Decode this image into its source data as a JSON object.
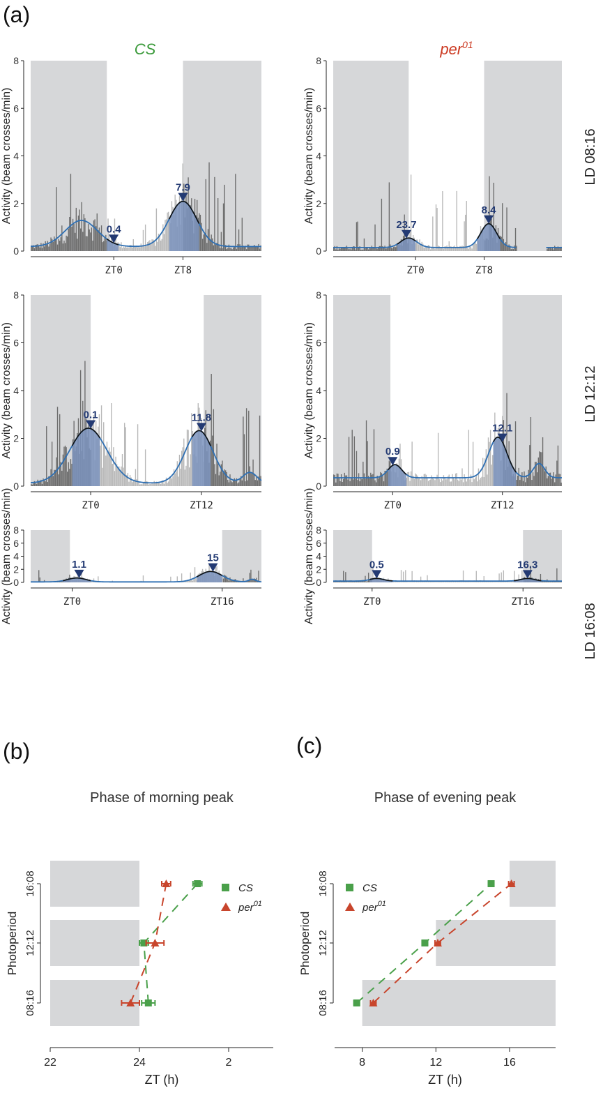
{
  "panel_labels": {
    "a": "(a)",
    "b": "(b)",
    "c": "(c)"
  },
  "columns": [
    {
      "label": "CS",
      "italic": true,
      "color": "#3a9a3a"
    },
    {
      "label": "per",
      "sup": "01",
      "italic": true,
      "color": "#cc3a22"
    }
  ],
  "rows": [
    {
      "label": "LD 08:16"
    },
    {
      "label": "LD 12:12"
    },
    {
      "label": "LD 16:08"
    }
  ],
  "activity_ylabel": "Activity (beam crosses/min)",
  "activity_yticks": [
    "0",
    "2",
    "4",
    "6",
    "8"
  ],
  "activity_panels": [
    {
      "row": 0,
      "col": 0,
      "zt_ticks": [
        "ZT0",
        "ZT8"
      ],
      "peak_labels": [
        "0.4",
        "7.9"
      ]
    },
    {
      "row": 0,
      "col": 1,
      "zt_ticks": [
        "ZT0",
        "ZT8"
      ],
      "peak_labels": [
        "23.7",
        "8.4"
      ]
    },
    {
      "row": 1,
      "col": 0,
      "zt_ticks": [
        "ZT0",
        "ZT12"
      ],
      "peak_labels": [
        "0.1",
        "11.8"
      ]
    },
    {
      "row": 1,
      "col": 1,
      "zt_ticks": [
        "ZT0",
        "ZT12"
      ],
      "peak_labels": [
        "0.9",
        "12.1"
      ]
    },
    {
      "row": 2,
      "col": 0,
      "zt_ticks": [
        "ZT0",
        "ZT16"
      ],
      "peak_labels": [
        "1.1",
        "15"
      ]
    },
    {
      "row": 2,
      "col": 1,
      "zt_ticks": [
        "ZT0",
        "ZT16"
      ],
      "peak_labels": [
        "0.5",
        "16.3"
      ]
    }
  ],
  "colors": {
    "dark_shade": "#d6d7d9",
    "dark_bar": "#6d6d6d",
    "light_bar": "#b8b8b8",
    "peak_fill": "#7b93bd",
    "smooth_line": "#2e6fb3",
    "marker": "#233a73",
    "cs": "#4aa04a",
    "per": "#c8452c"
  },
  "chart_data": [
    {
      "type": "bar",
      "title": "CS, LD 08:16",
      "ylabel": "Activity (beam crosses/min)",
      "ylim": [
        0,
        8
      ],
      "x_ticks": [
        "ZT0",
        "ZT8"
      ],
      "peaks": [
        {
          "label": "0.4",
          "height": 1.2
        },
        {
          "label": "7.9",
          "height": 2.2
        }
      ]
    },
    {
      "type": "bar",
      "title": "per01, LD 08:16",
      "ylabel": "Activity (beam crosses/min)",
      "ylim": [
        0,
        8
      ],
      "x_ticks": [
        "ZT0",
        "ZT8"
      ],
      "peaks": [
        {
          "label": "23.7",
          "height": 0.6
        },
        {
          "label": "8.4",
          "height": 1.2
        }
      ]
    },
    {
      "type": "bar",
      "title": "CS, LD 12:12",
      "ylabel": "Activity (beam crosses/min)",
      "ylim": [
        0,
        8
      ],
      "x_ticks": [
        "ZT0",
        "ZT12"
      ],
      "peaks": [
        {
          "label": "0.1",
          "height": 2.5
        },
        {
          "label": "11.8",
          "height": 2.3
        }
      ]
    },
    {
      "type": "bar",
      "title": "per01, LD 12:12",
      "ylabel": "Activity (beam crosses/min)",
      "ylim": [
        0,
        8
      ],
      "x_ticks": [
        "ZT0",
        "ZT12"
      ],
      "peaks": [
        {
          "label": "0.9",
          "height": 1.2
        },
        {
          "label": "12.1",
          "height": 2.3
        }
      ]
    },
    {
      "type": "bar",
      "title": "CS, LD 16:08",
      "ylabel": "Activity (beam crosses/min)",
      "ylim": [
        0,
        8
      ],
      "x_ticks": [
        "ZT0",
        "ZT16"
      ],
      "peaks": [
        {
          "label": "1.1",
          "height": 0.7
        },
        {
          "label": "15",
          "height": 1.8
        }
      ]
    },
    {
      "type": "bar",
      "title": "per01, LD 16:08",
      "ylabel": "Activity (beam crosses/min)",
      "ylim": [
        0,
        8
      ],
      "x_ticks": [
        "ZT0",
        "ZT16"
      ],
      "peaks": [
        {
          "label": "0.5",
          "height": 0.7
        },
        {
          "label": "16.3",
          "height": 0.8
        }
      ]
    },
    {
      "type": "scatter",
      "title": "Phase of morning peak",
      "xlabel": "ZT (h)",
      "ylabel": "Photoperiod",
      "x_ticks": [
        "22",
        "24",
        "2"
      ],
      "x_range": [
        22,
        27
      ],
      "categories": [
        "08:16",
        "12:12",
        "16:08"
      ],
      "dark_periods": [
        [
          22,
          24
        ],
        [
          22,
          24
        ],
        [
          22,
          24
        ]
      ],
      "series": [
        {
          "name": "CS",
          "marker": "square",
          "values": [
            24.2,
            24.1,
            25.3
          ],
          "errors": [
            0.15,
            0.1,
            0.1
          ]
        },
        {
          "name": "per01",
          "marker": "triangle",
          "values": [
            23.8,
            24.35,
            24.6
          ],
          "errors": [
            0.2,
            0.2,
            0.1
          ]
        }
      ]
    },
    {
      "type": "scatter",
      "title": "Phase of evening peak",
      "xlabel": "ZT (h)",
      "ylabel": "Photoperiod",
      "x_ticks": [
        "8",
        "12",
        "16"
      ],
      "x_range": [
        6.5,
        18.5
      ],
      "categories": [
        "08:16",
        "12:12",
        "16:08"
      ],
      "dark_periods": [
        [
          8,
          18.5
        ],
        [
          12,
          18.5
        ],
        [
          16,
          18.5
        ]
      ],
      "series": [
        {
          "name": "CS",
          "marker": "square",
          "values": [
            7.7,
            11.4,
            15.0
          ],
          "errors": [
            0.15,
            0.15,
            0.15
          ]
        },
        {
          "name": "per01",
          "marker": "triangle",
          "values": [
            8.6,
            12.1,
            16.1
          ],
          "errors": [
            0.15,
            0.15,
            0.15
          ]
        }
      ]
    }
  ]
}
